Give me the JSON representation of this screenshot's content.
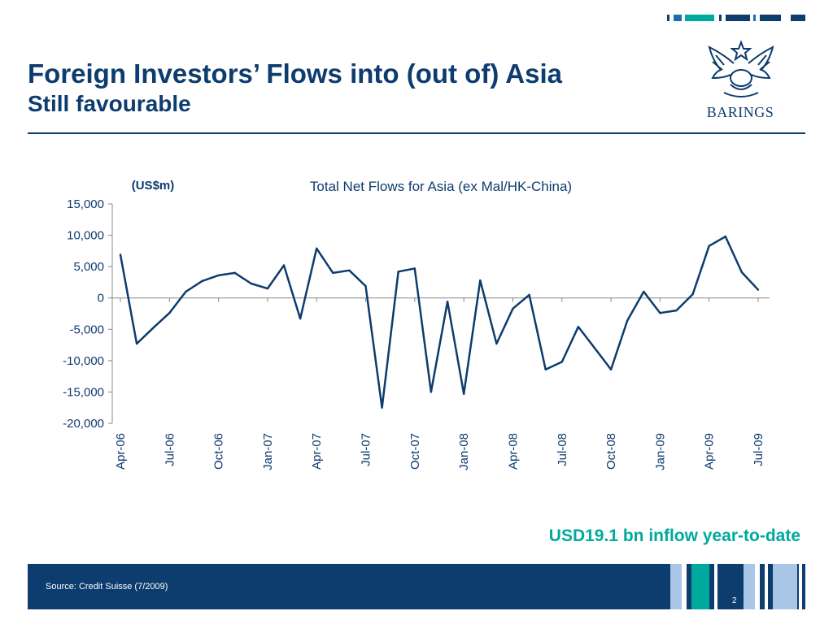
{
  "header": {
    "title": "Foreign Investors’ Flows into (out of) Asia",
    "subtitle": "Still favourable"
  },
  "logo": {
    "text": "BARINGS",
    "icon": "eagle-crest-icon"
  },
  "highlight": "USD19.1 bn inflow year-to-date",
  "footer": {
    "source": "Source: Credit Suisse (7/2009)",
    "page_number": "2"
  },
  "colors": {
    "brand_navy": "#0d3c6e",
    "accent_teal": "#00a99d",
    "line": "#0d3c6e",
    "light_blue": "#a9c6e6"
  },
  "chart_data": {
    "type": "line",
    "title": "Total Net Flows for Asia (ex Mal/HK-China)",
    "unit_label": "(US$m)",
    "ylim": [
      -20000,
      15000
    ],
    "yticks": [
      "15,000",
      "10,000",
      "5,000",
      "0",
      "-5,000",
      "-10,000",
      "-15,000",
      "-20,000"
    ],
    "xtick_labels": [
      "Apr-06",
      "Jul-06",
      "Oct-06",
      "Jan-07",
      "Apr-07",
      "Jul-07",
      "Oct-07",
      "Jan-08",
      "Apr-08",
      "Jul-08",
      "Oct-08",
      "Jan-09",
      "Apr-09",
      "Jul-09"
    ],
    "grid": false,
    "series": [
      {
        "values": [
          6900,
          -7300,
          -4800,
          -2400,
          1000,
          2700,
          3600,
          4000,
          2300,
          1500,
          5200,
          -3300,
          7900,
          4000,
          4400,
          1900,
          -17500,
          4200,
          4700,
          -15000,
          -600,
          -15300,
          2800,
          -7300,
          -1700,
          500,
          -11400,
          -10200,
          -4600,
          -8000,
          -11400,
          -3600,
          1000,
          -2400,
          -2000,
          600,
          8300,
          9800,
          4100,
          1300
        ]
      }
    ]
  }
}
